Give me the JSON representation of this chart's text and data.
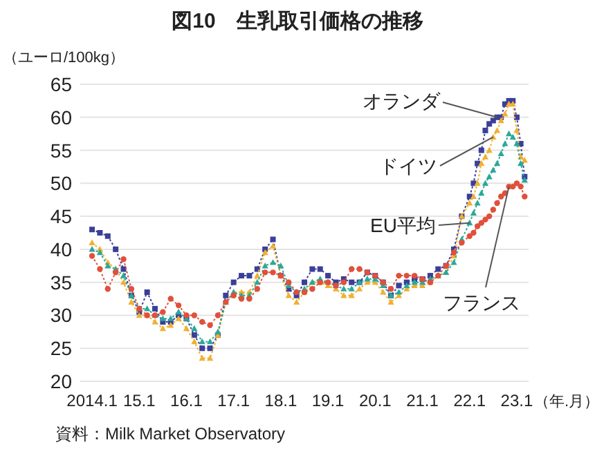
{
  "chart_data": {
    "type": "line",
    "title": "図10　生乳取引価格の推移",
    "ylabel": "（ユーロ/100kg）",
    "xlabel": "（年.月）",
    "annotations": [
      "資料：Milk Market Observatory"
    ],
    "xlim": [
      "2013-10",
      "2023-04"
    ],
    "ylim": [
      20,
      65
    ],
    "yticks": [
      20,
      25,
      30,
      35,
      40,
      45,
      50,
      55,
      60,
      65
    ],
    "xticks": [
      {
        "value": "2014-01",
        "label": "2014.1"
      },
      {
        "value": "2015-01",
        "label": "15.1"
      },
      {
        "value": "2016-01",
        "label": "16.1"
      },
      {
        "value": "2017-01",
        "label": "17.1"
      },
      {
        "value": "2018-01",
        "label": "18.1"
      },
      {
        "value": "2019-01",
        "label": "19.1"
      },
      {
        "value": "2020-01",
        "label": "20.1"
      },
      {
        "value": "2021-01",
        "label": "21.1"
      },
      {
        "value": "2022-01",
        "label": "22.1"
      },
      {
        "value": "2023-01",
        "label": "23.1"
      }
    ],
    "grid": "y",
    "legend": false,
    "line_style": "dotted",
    "x": [
      "2014-01",
      "2014-03",
      "2014-05",
      "2014-07",
      "2014-09",
      "2014-11",
      "2015-01",
      "2015-03",
      "2015-05",
      "2015-07",
      "2015-09",
      "2015-11",
      "2016-01",
      "2016-03",
      "2016-05",
      "2016-07",
      "2016-09",
      "2016-11",
      "2017-01",
      "2017-03",
      "2017-05",
      "2017-07",
      "2017-09",
      "2017-11",
      "2018-01",
      "2018-03",
      "2018-05",
      "2018-07",
      "2018-09",
      "2018-11",
      "2019-01",
      "2019-03",
      "2019-05",
      "2019-07",
      "2019-09",
      "2019-11",
      "2020-01",
      "2020-03",
      "2020-05",
      "2020-07",
      "2020-09",
      "2020-11",
      "2021-01",
      "2021-03",
      "2021-05",
      "2021-07",
      "2021-09",
      "2021-11",
      "2022-01",
      "2022-02",
      "2022-03",
      "2022-04",
      "2022-05",
      "2022-06",
      "2022-07",
      "2022-08",
      "2022-09",
      "2022-10",
      "2022-11",
      "2022-12",
      "2023-01",
      "2023-02",
      "2023-03"
    ],
    "series": [
      {
        "name": "オランダ",
        "color": "#3a3f99",
        "marker": "square",
        "values": [
          43,
          42.5,
          42,
          40,
          37,
          33,
          30.5,
          33.5,
          31,
          29,
          29,
          30,
          29.5,
          27,
          25,
          25,
          27,
          33,
          35,
          36,
          36,
          37,
          40,
          41.5,
          36,
          34,
          33,
          35,
          37,
          37,
          36,
          35,
          35.5,
          35,
          35,
          36.5,
          36,
          35,
          33,
          34.5,
          35,
          35.5,
          35.5,
          36,
          37,
          37.5,
          40,
          45,
          48,
          50,
          53,
          55,
          58,
          59,
          59.5,
          60,
          60,
          62,
          62.5,
          62.5,
          60,
          56,
          51
        ]
      },
      {
        "name": "ドイツ",
        "color": "#f0b030",
        "marker": "triangle",
        "values": [
          41,
          40,
          38,
          37,
          35,
          32,
          30,
          30,
          29,
          28,
          28.5,
          29.5,
          28,
          26,
          23.5,
          23.5,
          27,
          32,
          33.5,
          33.5,
          33.5,
          36,
          39.5,
          40.5,
          36,
          33,
          32,
          33.5,
          35,
          35,
          34.5,
          34,
          33,
          33,
          34,
          35,
          35,
          33.5,
          32,
          33,
          34,
          34.5,
          34.5,
          35,
          36,
          36.5,
          39,
          45,
          47,
          48,
          50,
          53,
          54,
          55,
          57,
          58,
          59.5,
          60.5,
          62,
          62,
          58,
          54,
          53.5
        ]
      },
      {
        "name": "EU平均",
        "color": "#2aa89a",
        "marker": "triangle",
        "values": [
          40,
          39.5,
          37.5,
          37,
          36,
          33,
          31,
          31,
          30,
          29.5,
          29.5,
          30.5,
          29.5,
          28,
          26,
          26,
          27.5,
          32,
          33.5,
          33,
          33,
          35,
          37.5,
          38,
          37.5,
          34.5,
          33.5,
          34,
          35,
          35.5,
          35,
          34.5,
          34,
          34,
          35,
          35.5,
          35.5,
          34.5,
          33,
          33.5,
          34.5,
          35,
          35,
          35.5,
          36,
          36.5,
          38,
          41.5,
          44,
          45.5,
          47,
          48.5,
          50,
          51,
          52,
          53,
          54.5,
          56,
          57.5,
          57,
          56,
          53,
          50.5
        ]
      },
      {
        "name": "フランス",
        "color": "#e0503a",
        "marker": "circle",
        "values": [
          39,
          37,
          34,
          36.5,
          38.5,
          34,
          31,
          30,
          30,
          30.5,
          32.5,
          31.5,
          30,
          30,
          29,
          28.5,
          30,
          32,
          33,
          32.5,
          32.5,
          34,
          36.5,
          36.5,
          36,
          35,
          33.5,
          33.5,
          34,
          35,
          35,
          34.5,
          35,
          37,
          37,
          36.5,
          36,
          35,
          34,
          36,
          36,
          36,
          35.5,
          35,
          36,
          37.5,
          39.5,
          41,
          42,
          42.5,
          43.5,
          44,
          44.5,
          45,
          46,
          47,
          48,
          48.5,
          49.5,
          49.5,
          50,
          49.5,
          48
        ]
      }
    ]
  }
}
